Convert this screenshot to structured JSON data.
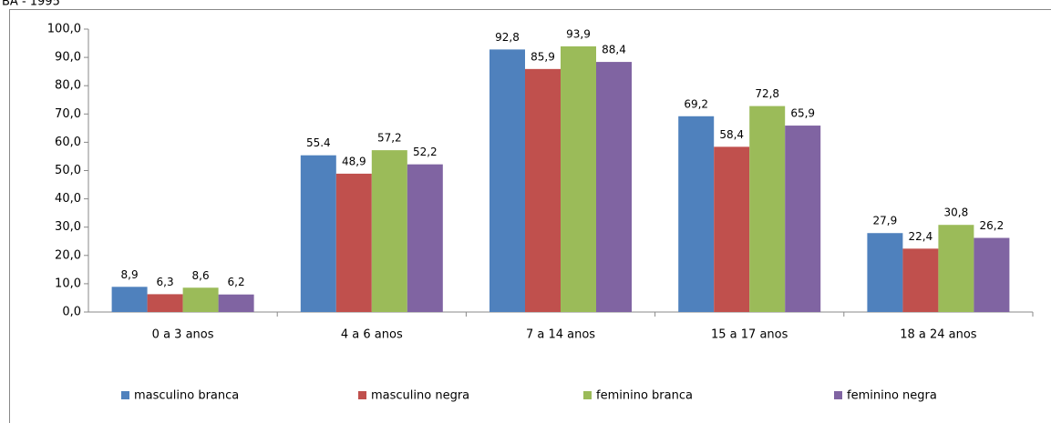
{
  "chart_data": {
    "type": "bar",
    "title": "BA - 1995",
    "categories": [
      "0 a 3 anos",
      "4 a 6 anos",
      "7 a 14 anos",
      "15 a 17 anos",
      "18 a 24 anos"
    ],
    "series": [
      {
        "name": "masculino branca",
        "color": "#4f81bd",
        "values": [
          8.9,
          55.4,
          92.8,
          69.2,
          27.9
        ],
        "value_labels": [
          "8,9",
          "55.4",
          "92,8",
          "69,2",
          "27,9"
        ]
      },
      {
        "name": "masculino negra",
        "color": "#c0504d",
        "values": [
          6.3,
          48.9,
          85.9,
          58.4,
          22.4
        ],
        "value_labels": [
          "6,3",
          "48,9",
          "85,9",
          "58,4",
          "22,4"
        ]
      },
      {
        "name": "feminino branca",
        "color": "#9bbb59",
        "values": [
          8.6,
          57.2,
          93.9,
          72.8,
          30.8
        ],
        "value_labels": [
          "8,6",
          "57,2",
          "93,9",
          "72,8",
          "30,8"
        ]
      },
      {
        "name": "feminino negra",
        "color": "#8064a2",
        "values": [
          6.2,
          52.2,
          88.4,
          65.9,
          26.2
        ],
        "value_labels": [
          "6,2",
          "52,2",
          "88,4",
          "65,9",
          "26,2"
        ]
      }
    ],
    "ylim": [
      0,
      100
    ],
    "yticks": [
      {
        "value": 0,
        "label": "0,0"
      },
      {
        "value": 10,
        "label": "10,0"
      },
      {
        "value": 20,
        "label": "20,0"
      },
      {
        "value": 30,
        "label": "30,0"
      },
      {
        "value": 40,
        "label": "40,0"
      },
      {
        "value": 50,
        "label": "50,0"
      },
      {
        "value": 60,
        "label": "60,0"
      },
      {
        "value": 70,
        "label": "70,0"
      },
      {
        "value": 80,
        "label": "80,0"
      },
      {
        "value": 90,
        "label": "90,0"
      },
      {
        "value": 100,
        "label": "100,0"
      }
    ],
    "legend": "bottom"
  }
}
